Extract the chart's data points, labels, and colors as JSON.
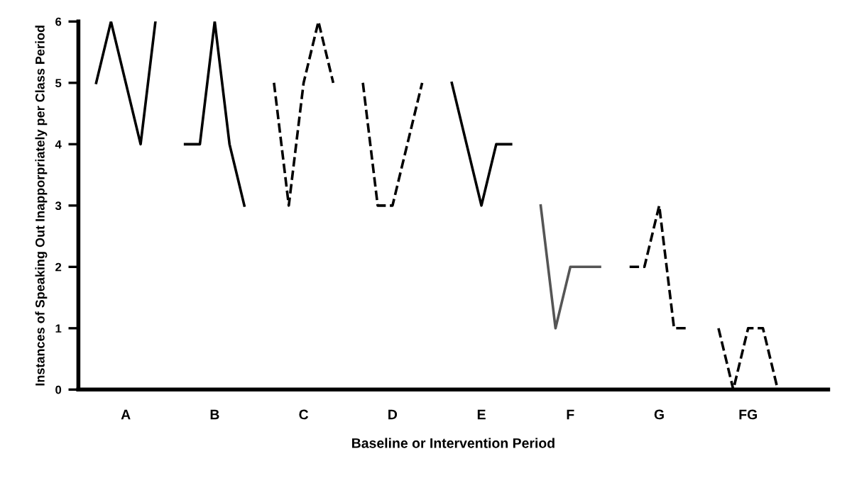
{
  "chart_data": {
    "type": "line",
    "xlabel": "Baseline or Intervention Period",
    "ylabel": "Instances of Speaking Out Inapporpriately per Class Period",
    "ylim": [
      0,
      6
    ],
    "yticks": [
      0,
      1,
      2,
      3,
      4,
      5,
      6
    ],
    "categories": [
      null,
      null,
      "A",
      null,
      null,
      null,
      null,
      null,
      "B",
      null,
      null,
      null,
      null,
      null,
      "C",
      null,
      null,
      null,
      null,
      null,
      "D",
      null,
      null,
      null,
      null,
      null,
      "E",
      null,
      null,
      null,
      null,
      null,
      "F",
      null,
      null,
      null,
      null,
      null,
      "G",
      null,
      null,
      null,
      null,
      null,
      "FG",
      null,
      null
    ],
    "grid": false,
    "legend": false,
    "marker": "none",
    "series": [
      {
        "color": "#000000",
        "line_style": "solid",
        "values": [
          5,
          6,
          5,
          4,
          6,
          null,
          null,
          null,
          null,
          null,
          null,
          null,
          null,
          null,
          null,
          null,
          null,
          null,
          null,
          null,
          null,
          null,
          null,
          null,
          null,
          null,
          null,
          null,
          null,
          null,
          null,
          null,
          null,
          null,
          null,
          null,
          null,
          null,
          null,
          null,
          null,
          null,
          null,
          null,
          null,
          null,
          null
        ]
      },
      {
        "color": "#000000",
        "line_style": "solid",
        "values": [
          null,
          null,
          null,
          null,
          null,
          null,
          4,
          4,
          6,
          4,
          3,
          null,
          null,
          null,
          null,
          null,
          null,
          null,
          null,
          null,
          null,
          null,
          null,
          null,
          null,
          null,
          null,
          null,
          null,
          null,
          null,
          null,
          null,
          null,
          null,
          null,
          null,
          null,
          null,
          null,
          null,
          null,
          null,
          null,
          null,
          null,
          null
        ]
      },
      {
        "color": "#000000",
        "line_style": "dashed",
        "values": [
          null,
          null,
          null,
          null,
          null,
          null,
          null,
          null,
          null,
          null,
          null,
          null,
          5,
          3,
          5,
          6,
          5,
          null,
          null,
          null,
          null,
          null,
          null,
          null,
          null,
          null,
          null,
          null,
          null,
          null,
          null,
          null,
          null,
          null,
          null,
          null,
          null,
          null,
          null,
          null,
          null,
          null,
          null,
          null,
          null,
          null,
          null
        ]
      },
      {
        "color": "#000000",
        "line_style": "dashed",
        "values": [
          null,
          null,
          null,
          null,
          null,
          null,
          null,
          null,
          null,
          null,
          null,
          null,
          null,
          null,
          null,
          null,
          null,
          null,
          5,
          3,
          3,
          4,
          5,
          null,
          null,
          null,
          null,
          null,
          null,
          null,
          null,
          null,
          null,
          null,
          null,
          null,
          null,
          null,
          null,
          null,
          null,
          null,
          null,
          null,
          null,
          null,
          null
        ]
      },
      {
        "color": "#000000",
        "line_style": "solid",
        "values": [
          null,
          null,
          null,
          null,
          null,
          null,
          null,
          null,
          null,
          null,
          null,
          null,
          null,
          null,
          null,
          null,
          null,
          null,
          null,
          null,
          null,
          null,
          null,
          null,
          5,
          4,
          3,
          4,
          4,
          null,
          null,
          null,
          null,
          null,
          null,
          null,
          null,
          null,
          null,
          null,
          null,
          null,
          null,
          null,
          null,
          null,
          null
        ]
      },
      {
        "color": "#555555",
        "line_style": "solid",
        "values": [
          null,
          null,
          null,
          null,
          null,
          null,
          null,
          null,
          null,
          null,
          null,
          null,
          null,
          null,
          null,
          null,
          null,
          null,
          null,
          null,
          null,
          null,
          null,
          null,
          null,
          null,
          null,
          null,
          null,
          null,
          3,
          1,
          2,
          2,
          2,
          null,
          null,
          null,
          null,
          null,
          null,
          null,
          null,
          null,
          null,
          null,
          null
        ]
      },
      {
        "color": "#000000",
        "line_style": "dashed",
        "values": [
          null,
          null,
          null,
          null,
          null,
          null,
          null,
          null,
          null,
          null,
          null,
          null,
          null,
          null,
          null,
          null,
          null,
          null,
          null,
          null,
          null,
          null,
          null,
          null,
          null,
          null,
          null,
          null,
          null,
          null,
          null,
          null,
          null,
          null,
          null,
          null,
          2,
          2,
          3,
          1,
          1,
          null,
          null,
          null,
          null,
          null,
          null
        ]
      },
      {
        "color": "#000000",
        "line_style": "dashed",
        "values": [
          null,
          null,
          null,
          null,
          null,
          null,
          null,
          null,
          null,
          null,
          null,
          null,
          null,
          null,
          null,
          null,
          null,
          null,
          null,
          null,
          null,
          null,
          null,
          null,
          null,
          null,
          null,
          null,
          null,
          null,
          null,
          null,
          null,
          null,
          null,
          null,
          null,
          null,
          null,
          null,
          null,
          null,
          1,
          0,
          1,
          1,
          0
        ]
      }
    ]
  }
}
